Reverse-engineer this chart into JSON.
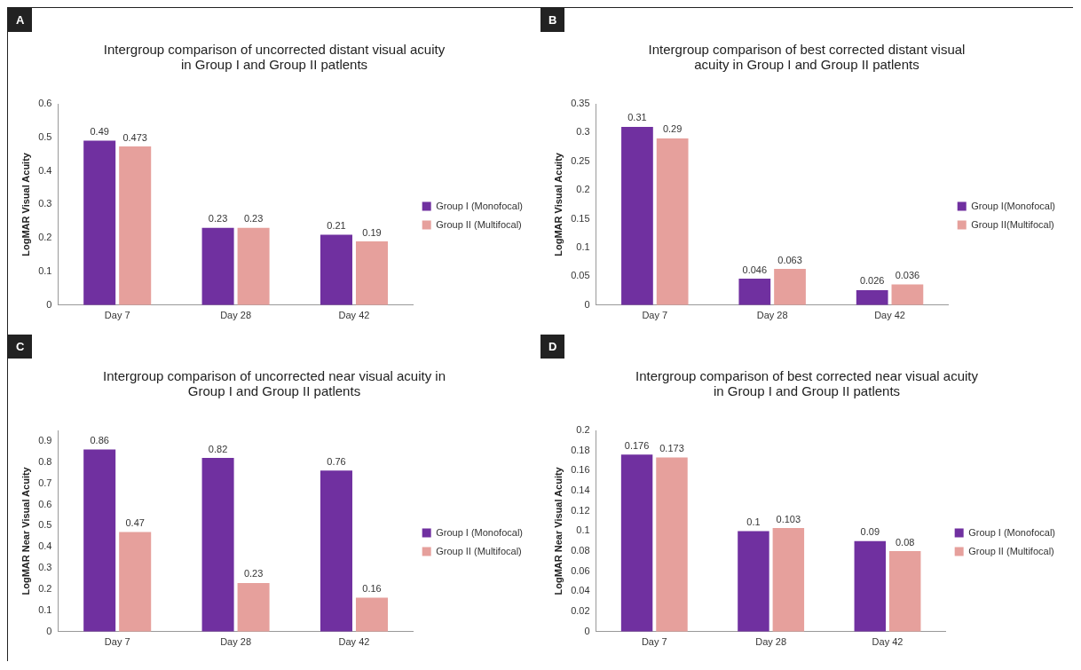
{
  "chart_data": [
    {
      "type": "bar",
      "title": "Intergroup comparison of uncorrected distant visual acuity in Group I and Group II patlents",
      "annotations": [
        "A"
      ],
      "ylabel": "LogMAR Visual Acuity",
      "categories": [
        "Day 7",
        "Day 28",
        "Day 42"
      ],
      "series": [
        {
          "name": "Group I (Monofocal)",
          "color": "#7030a0",
          "values": [
            0.49,
            0.23,
            0.21
          ]
        },
        {
          "name": "Group II (Multifocal)",
          "color": "#e6a09c",
          "values": [
            0.473,
            0.23,
            0.19
          ]
        }
      ],
      "ylim": [
        0,
        0.6
      ],
      "yticks": [
        0,
        0.1,
        0.2,
        0.3,
        0.4,
        0.5,
        0.6
      ],
      "grid": false,
      "legend": "right",
      "data_labels": true
    },
    {
      "type": "bar",
      "title": "Intergroup comparison of best corrected distant visual acuity in Group I and Group II patlents",
      "annotations": [
        "B"
      ],
      "ylabel": "LogMAR Visual Acuity",
      "categories": [
        "Day 7",
        "Day 28",
        "Day 42"
      ],
      "series": [
        {
          "name": "Group I(Monofocal)",
          "color": "#7030a0",
          "values": [
            0.31,
            0.046,
            0.026
          ]
        },
        {
          "name": "Group II(Multifocal)",
          "color": "#e6a09c",
          "values": [
            0.29,
            0.063,
            0.036
          ]
        }
      ],
      "ylim": [
        0,
        0.35
      ],
      "yticks": [
        0,
        0.05,
        0.1,
        0.15,
        0.2,
        0.25,
        0.3,
        0.35
      ],
      "grid": false,
      "legend": "right",
      "data_labels": true
    },
    {
      "type": "bar",
      "title": "Intergroup comparison of uncorrected near visual acuity in Group I and Group II patlents",
      "annotations": [
        "C"
      ],
      "ylabel": "LogMAR Near Visual Acuity",
      "categories": [
        "Day 7",
        "Day 28",
        "Day 42"
      ],
      "series": [
        {
          "name": "Group I (Monofocal)",
          "color": "#7030a0",
          "values": [
            0.86,
            0.82,
            0.76
          ]
        },
        {
          "name": "Group II (Multifocal)",
          "color": "#e6a09c",
          "values": [
            0.47,
            0.23,
            0.16
          ]
        }
      ],
      "ylim": [
        0,
        0.95
      ],
      "yticks": [
        0,
        0.1,
        0.2,
        0.3,
        0.4,
        0.5,
        0.6,
        0.7,
        0.8,
        0.9
      ],
      "grid": false,
      "legend": "right",
      "data_labels": true
    },
    {
      "type": "bar",
      "title": "Intergroup comparison of best corrected near visual acuity in Group I and Group II patlents",
      "annotations": [
        "D"
      ],
      "ylabel": "LogMAR Near Visual Acuity",
      "categories": [
        "Day 7",
        "Day 28",
        "Day 42"
      ],
      "series": [
        {
          "name": "Group I (Monofocal)",
          "color": "#7030a0",
          "values": [
            0.176,
            0.1,
            0.09
          ]
        },
        {
          "name": "Group II (Multifocal)",
          "color": "#e6a09c",
          "values": [
            0.173,
            0.103,
            0.08
          ]
        }
      ],
      "ylim": [
        0,
        0.2
      ],
      "yticks": [
        0,
        0.02,
        0.04,
        0.06,
        0.08,
        0.1,
        0.12,
        0.14,
        0.16,
        0.18,
        0.2
      ],
      "grid": false,
      "legend": "right",
      "data_labels": true
    }
  ]
}
